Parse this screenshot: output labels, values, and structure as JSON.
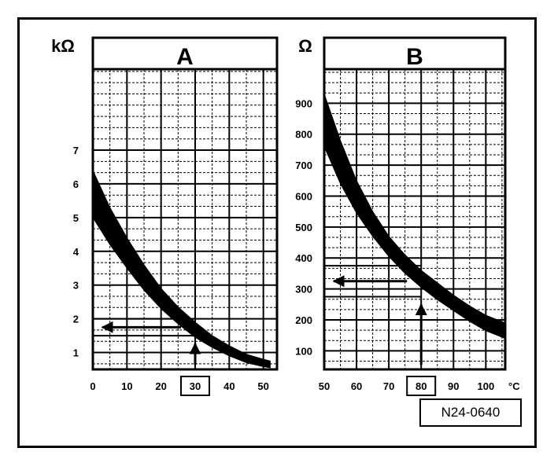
{
  "figure": {
    "reference_code": "N24-0640"
  },
  "chart_data": [
    {
      "type": "area",
      "title": "A",
      "ylabel": "kΩ",
      "x_ticks": [
        "0",
        "10",
        "20",
        "30",
        "40",
        "50"
      ],
      "y_ticks": [
        "1",
        "2",
        "3",
        "4",
        "5",
        "6",
        "7"
      ],
      "xlim": [
        0,
        54
      ],
      "ylim": [
        0.5,
        9.4
      ],
      "highlight_x": "30",
      "band": {
        "x": [
          0,
          5,
          10,
          15,
          20,
          25,
          30,
          35,
          40,
          45,
          50,
          52
        ],
        "upper": [
          6.4,
          5.3,
          4.4,
          3.6,
          2.9,
          2.35,
          1.9,
          1.5,
          1.2,
          0.95,
          0.8,
          0.75
        ],
        "lower": [
          5.0,
          4.2,
          3.5,
          2.85,
          2.3,
          1.85,
          1.45,
          1.15,
          0.9,
          0.7,
          0.58,
          0.55
        ]
      },
      "reading": {
        "x": 30,
        "y_low": 1.5,
        "y_high": 2.0
      }
    },
    {
      "type": "area",
      "title": "B",
      "ylabel": "Ω",
      "xlabel": "°C",
      "x_ticks": [
        "50",
        "60",
        "70",
        "80",
        "90",
        "100"
      ],
      "y_ticks": [
        "100",
        "200",
        "300",
        "400",
        "500",
        "600",
        "700",
        "800",
        "900"
      ],
      "xlim": [
        50,
        106
      ],
      "ylim": [
        40,
        1010
      ],
      "highlight_x": "80",
      "band": {
        "x": [
          50,
          55,
          60,
          65,
          70,
          75,
          80,
          85,
          90,
          95,
          100,
          106
        ],
        "upper": [
          930,
          780,
          650,
          550,
          470,
          410,
          360,
          320,
          280,
          245,
          215,
          190
        ],
        "lower": [
          760,
          640,
          545,
          470,
          405,
          350,
          305,
          265,
          230,
          195,
          165,
          140
        ]
      },
      "reading": {
        "x": 80,
        "y_low": 275,
        "y_high": 375
      }
    }
  ]
}
